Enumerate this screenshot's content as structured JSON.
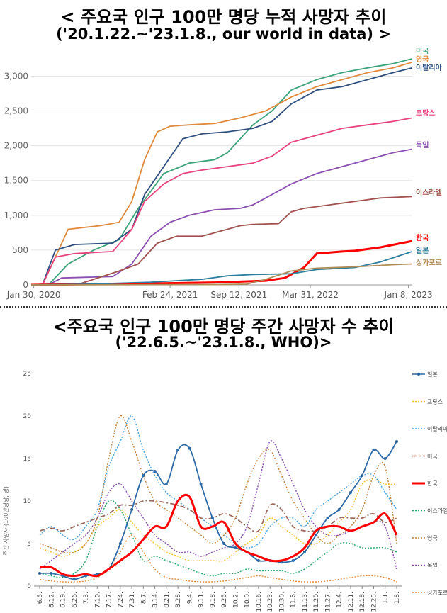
{
  "title_main": "< 주요국 인구 100만 명당 누적 사망자 추이",
  "title_sub": "('20.1.22.~'23.1.8., our world in data) >",
  "title2_main": "<주요국 인구 100만 명당 주간 사망자 수 추이",
  "title2_sub": "('22.6.5.~'23.1.8., WHO)>",
  "chart_data": [
    {
      "type": "line",
      "title": "< 주요국 인구 100만 명당 누적 사망자 추이",
      "subtitle": "('20.1.22.~'23.1.8., our world in data) >",
      "x_range": [
        2020.06,
        2023.05
      ],
      "ylim": [
        0,
        3300
      ],
      "yticks": [
        0,
        500,
        1000,
        1500,
        2000,
        2500,
        3000
      ],
      "ytick_labels": [
        "0",
        "500",
        "1,000",
        "1,500",
        "2,000",
        "2,500",
        "3,000"
      ],
      "xticks": [
        2020.08,
        2021.15,
        2021.69,
        2022.25,
        2023.02
      ],
      "xtick_labels": [
        "Jan 30, 2020",
        "Feb 24, 2021",
        "Sep 12, 2021",
        "Mar 31, 2022",
        "Jan 8, 2023"
      ],
      "grid": "horizontal",
      "legend": "end-labels",
      "series": [
        {
          "name": "미국",
          "color": "#3ca37a",
          "x": [
            2020.06,
            2020.2,
            2020.35,
            2020.55,
            2020.75,
            2020.9,
            2021.1,
            2021.3,
            2021.5,
            2021.6,
            2021.7,
            2021.8,
            2021.95,
            2022.1,
            2022.3,
            2022.5,
            2022.7,
            2022.9,
            2023.05
          ],
          "y": [
            0,
            10,
            300,
            500,
            650,
            1100,
            1600,
            1750,
            1800,
            1900,
            2100,
            2300,
            2500,
            2800,
            2950,
            3050,
            3120,
            3180,
            3250
          ]
        },
        {
          "name": "영국",
          "color": "#e08a3c",
          "x": [
            2020.06,
            2020.15,
            2020.25,
            2020.35,
            2020.6,
            2020.75,
            2020.85,
            2020.95,
            2021.05,
            2021.15,
            2021.3,
            2021.5,
            2021.7,
            2021.9,
            2022.1,
            2022.3,
            2022.5,
            2022.7,
            2022.9,
            2023.05
          ],
          "y": [
            0,
            5,
            400,
            800,
            850,
            900,
            1200,
            1800,
            2200,
            2280,
            2300,
            2320,
            2400,
            2500,
            2700,
            2850,
            2950,
            3050,
            3120,
            3200
          ]
        },
        {
          "name": "이탈리아",
          "color": "#2f4f7f",
          "x": [
            2020.06,
            2020.15,
            2020.25,
            2020.4,
            2020.7,
            2020.85,
            2020.95,
            2021.1,
            2021.25,
            2021.4,
            2021.6,
            2021.8,
            2021.95,
            2022.1,
            2022.3,
            2022.5,
            2022.7,
            2022.9,
            2023.05
          ],
          "y": [
            0,
            10,
            500,
            580,
            600,
            800,
            1300,
            1700,
            2100,
            2170,
            2200,
            2250,
            2350,
            2600,
            2800,
            2850,
            2950,
            3050,
            3120
          ]
        },
        {
          "name": "프랑스",
          "color": "#e8437e",
          "x": [
            2020.06,
            2020.15,
            2020.25,
            2020.4,
            2020.7,
            2020.85,
            2020.95,
            2021.1,
            2021.25,
            2021.4,
            2021.6,
            2021.8,
            2021.95,
            2022.1,
            2022.3,
            2022.5,
            2022.7,
            2022.9,
            2023.05
          ],
          "y": [
            0,
            5,
            400,
            450,
            480,
            800,
            1200,
            1450,
            1600,
            1650,
            1700,
            1750,
            1850,
            2050,
            2150,
            2250,
            2300,
            2350,
            2400
          ]
        },
        {
          "name": "독일",
          "color": "#8b4fb0",
          "x": [
            2020.06,
            2020.2,
            2020.3,
            2020.7,
            2020.85,
            2021.0,
            2021.15,
            2021.3,
            2021.5,
            2021.7,
            2021.8,
            2021.95,
            2022.1,
            2022.3,
            2022.5,
            2022.7,
            2022.9,
            2023.05
          ],
          "y": [
            0,
            5,
            100,
            120,
            300,
            700,
            900,
            1000,
            1080,
            1100,
            1150,
            1300,
            1450,
            1600,
            1700,
            1800,
            1900,
            1950
          ]
        },
        {
          "name": "이스라엘",
          "color": "#a0524e",
          "x": [
            2020.06,
            2020.3,
            2020.45,
            2020.75,
            2020.9,
            2021.05,
            2021.2,
            2021.4,
            2021.6,
            2021.7,
            2021.8,
            2022.0,
            2022.1,
            2022.2,
            2022.4,
            2022.6,
            2022.8,
            2023.05
          ],
          "y": [
            0,
            5,
            20,
            200,
            300,
            600,
            700,
            700,
            800,
            850,
            870,
            880,
            1050,
            1100,
            1150,
            1200,
            1250,
            1270
          ]
        },
        {
          "name": "한국",
          "color": "#ff0000",
          "x": [
            2020.06,
            2020.5,
            2021.0,
            2021.5,
            2021.9,
            2022.05,
            2022.2,
            2022.3,
            2022.5,
            2022.6,
            2022.8,
            2023.05
          ],
          "y": [
            0,
            10,
            20,
            35,
            60,
            100,
            250,
            450,
            480,
            490,
            540,
            630
          ]
        },
        {
          "name": "일본",
          "color": "#2e7f9f",
          "x": [
            2020.06,
            2020.5,
            2021.0,
            2021.4,
            2021.6,
            2021.8,
            2022.1,
            2022.3,
            2022.6,
            2022.8,
            2023.05
          ],
          "y": [
            0,
            10,
            40,
            80,
            130,
            150,
            160,
            220,
            250,
            330,
            480
          ]
        },
        {
          "name": "싱가포르",
          "color": "#b08d57",
          "x": [
            2020.06,
            2021.5,
            2021.75,
            2021.9,
            2022.1,
            2022.3,
            2022.6,
            2022.9,
            2023.05
          ],
          "y": [
            0,
            5,
            10,
            80,
            200,
            240,
            260,
            290,
            300
          ]
        }
      ]
    },
    {
      "type": "line",
      "title": "<주요국 인구 100만 명당 주간 사망자 수 추이",
      "subtitle": "('22.6.5.~'23.1.8., WHO)>",
      "ylabel": "주간 사망자 (100만명당, 명)",
      "ylim": [
        0,
        25
      ],
      "yticks": [
        0,
        5,
        10,
        15,
        20,
        25
      ],
      "categories": [
        "6.5.",
        "6.12.",
        "6.19.",
        "6.26.",
        "7.3.",
        "7.10.",
        "7.17.",
        "7.24.",
        "7.31.",
        "8.7.",
        "8.14.",
        "8.21.",
        "8.28.",
        "9.4.",
        "9.11.",
        "9.18.",
        "9.25.",
        "10.2.",
        "10.9.",
        "10.16.",
        "10.23.",
        "10.30.",
        "11.6.",
        "11.13.",
        "11.20.",
        "11.27.",
        "12.4.",
        "12.11.",
        "12.18.",
        "12.25.",
        "1.1.",
        "1.8."
      ],
      "legend": "right",
      "series": [
        {
          "name": "일본",
          "color": "#2e6aa6",
          "style": "solid-marker",
          "values": [
            1.5,
            1.5,
            1.2,
            0.8,
            1.2,
            1.4,
            2,
            5,
            9,
            13,
            13.5,
            12,
            16,
            16.2,
            12,
            8,
            5,
            4.5,
            4,
            3,
            3,
            2.8,
            3,
            4,
            6,
            8,
            9,
            11,
            13,
            16,
            15,
            17
          ]
        },
        {
          "name": "프랑스",
          "color": "#f4c430",
          "style": "dotted",
          "values": [
            4.5,
            4,
            3.5,
            4,
            5,
            7,
            8,
            9,
            7.5,
            6,
            5,
            4,
            3.5,
            3,
            3,
            3,
            3,
            4,
            5,
            6,
            8,
            7,
            6,
            5,
            5,
            6,
            7.5,
            9,
            12,
            12.5,
            12,
            12
          ]
        },
        {
          "name": "이탈리아",
          "color": "#4aa3df",
          "style": "dotted",
          "values": [
            6,
            7,
            6,
            5.5,
            7,
            9,
            14,
            17,
            20,
            16,
            13,
            11,
            10,
            9,
            8,
            7,
            6,
            5,
            4.5,
            5,
            7,
            8,
            8,
            7,
            9,
            10,
            11,
            12,
            13,
            13,
            11,
            9
          ]
        },
        {
          "name": "미국",
          "color": "#9c6b5e",
          "style": "dashdot",
          "values": [
            6.5,
            6.8,
            6.5,
            7,
            7.5,
            8,
            8.5,
            9.5,
            9.5,
            10,
            10,
            9.8,
            9.5,
            9,
            8,
            8,
            8.5,
            8,
            7,
            6.5,
            9.5,
            9,
            7,
            6.5,
            6.5,
            7,
            8,
            8,
            8,
            8.5,
            7.5,
            8
          ]
        },
        {
          "name": "한국",
          "color": "#ff0000",
          "style": "bold",
          "values": [
            2.2,
            2.2,
            1.4,
            1.2,
            1.4,
            1.2,
            2,
            3,
            4,
            5.5,
            7,
            7,
            10,
            10.5,
            7,
            7,
            7.5,
            5,
            4,
            3.5,
            3,
            3,
            3.5,
            4.5,
            6.5,
            7,
            7,
            6.5,
            7,
            7.5,
            8.5,
            6
          ]
        },
        {
          "name": "이스라엘",
          "color": "#2fa86e",
          "style": "dotted",
          "values": [
            1.5,
            1.2,
            1,
            1.5,
            3,
            7,
            10,
            9,
            6,
            3,
            3.5,
            3,
            2.5,
            2,
            1.5,
            1.2,
            1.5,
            1.5,
            2,
            1.8,
            1.8,
            1.8,
            1.5,
            2,
            3,
            4,
            5,
            5,
            4.5,
            4.5,
            4.5,
            4
          ]
        },
        {
          "name": "영국",
          "color": "#c0803a",
          "style": "dotted",
          "values": [
            5,
            4.5,
            4,
            4,
            5,
            8,
            15,
            20,
            17,
            13,
            10,
            9,
            8,
            7,
            6,
            5,
            6,
            8,
            12,
            15,
            16,
            13,
            10,
            8,
            6,
            5,
            6,
            7,
            9,
            13,
            14,
            5
          ]
        },
        {
          "name": "독일",
          "color": "#8b4fb0",
          "style": "dotted",
          "values": [
            2,
            3,
            4,
            5,
            6,
            8,
            11,
            12,
            10,
            8,
            6,
            5,
            4,
            4,
            3.5,
            4,
            4.5,
            5,
            7,
            12,
            17,
            15,
            12,
            9,
            7,
            6,
            6,
            6.5,
            7,
            7.5,
            7,
            2
          ]
        },
        {
          "name": "싱가포르",
          "color": "#e08a3c",
          "style": "dotted",
          "values": [
            0.8,
            0.6,
            0.5,
            0.5,
            0.6,
            1,
            2,
            4,
            6,
            4,
            2,
            1,
            0.8,
            0.6,
            0.5,
            0.5,
            0.6,
            0.8,
            1,
            1.2,
            1,
            0.8,
            0.6,
            0.5,
            0.5,
            0.6,
            0.8,
            1,
            1.2,
            1.2,
            1,
            0.5
          ]
        }
      ]
    }
  ]
}
